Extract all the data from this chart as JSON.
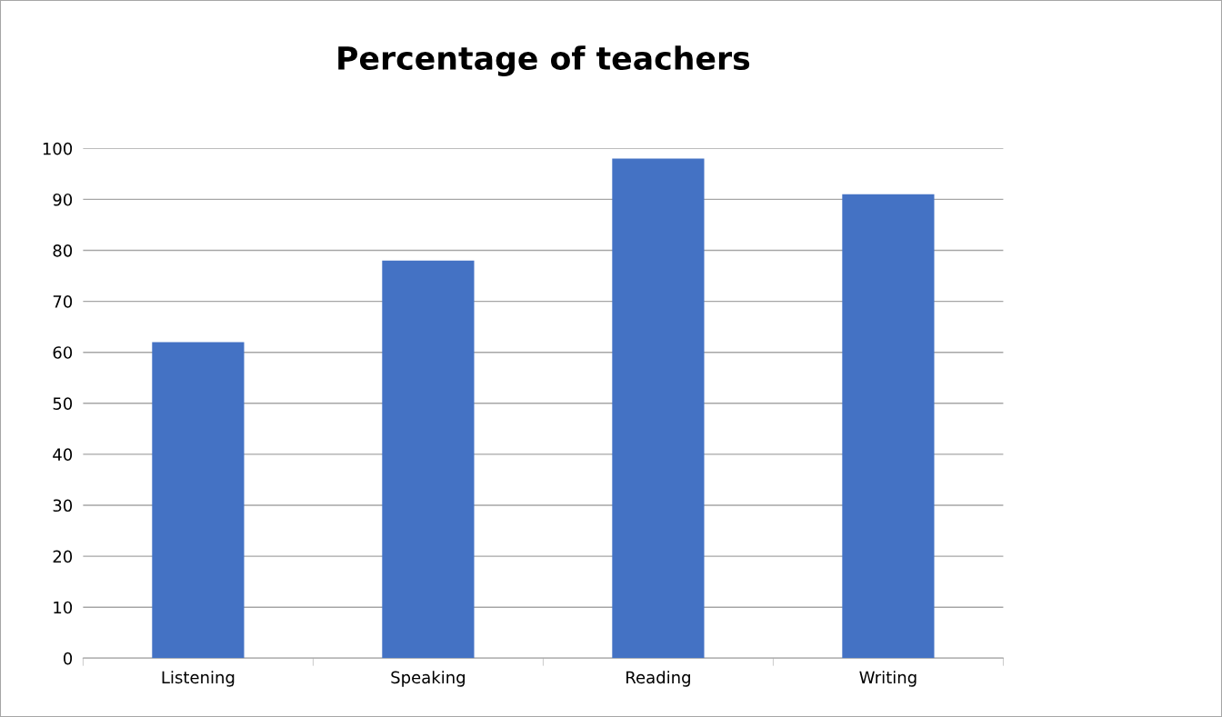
{
  "chart_data": {
    "type": "bar",
    "title": "Percentage of teachers",
    "categories": [
      "Listening",
      "Speaking",
      "Reading",
      "Writing"
    ],
    "values": [
      62,
      78,
      98,
      91
    ],
    "color": "#4472c4",
    "ylim": [
      0,
      100
    ],
    "yticks": [
      0,
      10,
      20,
      30,
      40,
      50,
      60,
      70,
      80,
      90,
      100
    ],
    "grid": "y",
    "legend": false
  }
}
